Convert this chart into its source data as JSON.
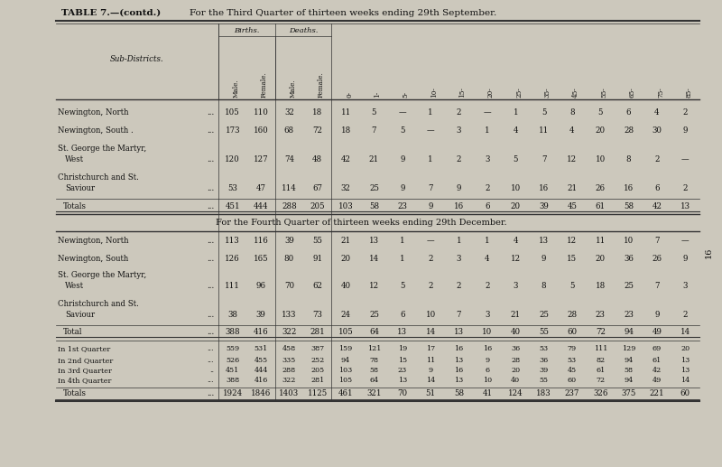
{
  "title_left": "TABLE 7.—(contd.)",
  "title_right": "For the Third Quarter of thirteen weeks ending 29th September.",
  "title2_center": "For the Fourth Quarter of thirteen weeks ending 29th December.",
  "bg_color": "#ccc8bc",
  "page_number": "16",
  "header_births": "Births.",
  "header_deaths": "Deaths.",
  "header_sub": "Sub-Districts.",
  "col_labels": [
    "Male.",
    "Female.",
    "Male.",
    "Female.",
    "0-",
    "1-",
    "5-",
    "10-",
    "15-",
    "20-",
    "25-",
    "35-",
    "45-",
    "55-",
    "65-",
    "75-",
    "85-"
  ],
  "q3_rows": [
    {
      "name1": "Newington, North",
      "name2": "",
      "dots": "...",
      "vals": [
        "105",
        "110",
        "32",
        "18",
        "11",
        "5",
        "—",
        "1",
        "2",
        "—",
        "1",
        "5",
        "8",
        "5",
        "6",
        "4",
        "2"
      ]
    },
    {
      "name1": "Newington, South .",
      "name2": "",
      "dots": "...",
      "vals": [
        "173",
        "160",
        "68",
        "72",
        "18",
        "7",
        "5",
        "—",
        "3",
        "1",
        "4",
        "11",
        "4",
        "20",
        "28",
        "30",
        "9"
      ]
    },
    {
      "name1": "St. George the Martyr,",
      "name2": "  West",
      "dots2": "...",
      "vals": [
        "120",
        "127",
        "74",
        "48",
        "42",
        "21",
        "9",
        "1",
        "2",
        "3",
        "5",
        "7",
        "12",
        "10",
        "8",
        "2",
        "—"
      ]
    },
    {
      "name1": "Christchurch and St.",
      "name2": "  Saviour",
      "dots2": "...",
      "vals": [
        "53",
        "47",
        "114",
        "67",
        "32",
        "25",
        "9",
        "7",
        "9",
        "2",
        "10",
        "16",
        "21",
        "26",
        "16",
        "6",
        "2"
      ]
    }
  ],
  "q3_total": {
    "name1": "Totals",
    "name2": "",
    "dots": "...",
    "vals": [
      "451",
      "444",
      "288",
      "205",
      "103",
      "58",
      "23",
      "9",
      "16",
      "6",
      "20",
      "39",
      "45",
      "61",
      "58",
      "42",
      "13"
    ]
  },
  "q4_rows": [
    {
      "name1": "Newington, North",
      "name2": "",
      "dots": "...",
      "vals": [
        "113",
        "116",
        "39",
        "55",
        "21",
        "13",
        "1",
        "—",
        "1",
        "1",
        "4",
        "13",
        "12",
        "11",
        "10",
        "7",
        "—"
      ]
    },
    {
      "name1": "Newington, South",
      "name2": "",
      "dots": "...",
      "vals": [
        "126",
        "165",
        "80",
        "91",
        "20",
        "14",
        "1",
        "2",
        "3",
        "4",
        "12",
        "9",
        "15",
        "20",
        "36",
        "26",
        "9"
      ]
    },
    {
      "name1": "St. George the Martyr,",
      "name2": "  West",
      "dots2": "...",
      "vals": [
        "111",
        "96",
        "70",
        "62",
        "40",
        "12",
        "5",
        "2",
        "2",
        "2",
        "3",
        "8",
        "5",
        "18",
        "25",
        "7",
        "3"
      ]
    },
    {
      "name1": "Christchurch and St.",
      "name2": "  Saviour",
      "dots2": "...",
      "vals": [
        "38",
        "39",
        "133",
        "73",
        "24",
        "25",
        "6",
        "10",
        "7",
        "3",
        "21",
        "25",
        "28",
        "23",
        "23",
        "9",
        "2"
      ]
    }
  ],
  "q4_total": {
    "name1": "Total",
    "name2": "",
    "dots": "...",
    "vals": [
      "388",
      "416",
      "322",
      "281",
      "105",
      "64",
      "13",
      "14",
      "13",
      "10",
      "40",
      "55",
      "60",
      "72",
      "94",
      "49",
      "14"
    ]
  },
  "summary_rows": [
    {
      "name": "In 1st Quarter",
      "dots": "...",
      "vals": [
        "559",
        "531",
        "458",
        "387",
        "159",
        "121",
        "19",
        "17",
        "16",
        "16",
        "36",
        "53",
        "79",
        "111",
        "129",
        "69",
        "20"
      ]
    },
    {
      "name": "In 2nd Quarter",
      "dots": "...",
      "vals": [
        "526",
        "455",
        "335",
        "252",
        "94",
        "78",
        "15",
        "11",
        "13",
        "9",
        "28",
        "36",
        "53",
        "82",
        "94",
        "61",
        "13"
      ]
    },
    {
      "name": "In 3rd Quarter",
      "dots": "..",
      "vals": [
        "451",
        "444",
        "288",
        "205",
        "103",
        "58",
        "23",
        "9",
        "16",
        "6",
        "20",
        "39",
        "45",
        "61",
        "58",
        "42",
        "13"
      ]
    },
    {
      "name": "In 4th Quarter",
      "dots": "...",
      "vals": [
        "388",
        "416",
        "322",
        "281",
        "105",
        "64",
        "13",
        "14",
        "13",
        "10",
        "40",
        "55",
        "60",
        "72",
        "94",
        "49",
        "14"
      ]
    }
  ],
  "summary_total": {
    "name": "Totals",
    "dots": "...",
    "vals": [
      "1924",
      "1846",
      "1403",
      "1125",
      "461",
      "321",
      "70",
      "51",
      "58",
      "41",
      "124",
      "183",
      "237",
      "326",
      "375",
      "221",
      "60"
    ]
  }
}
